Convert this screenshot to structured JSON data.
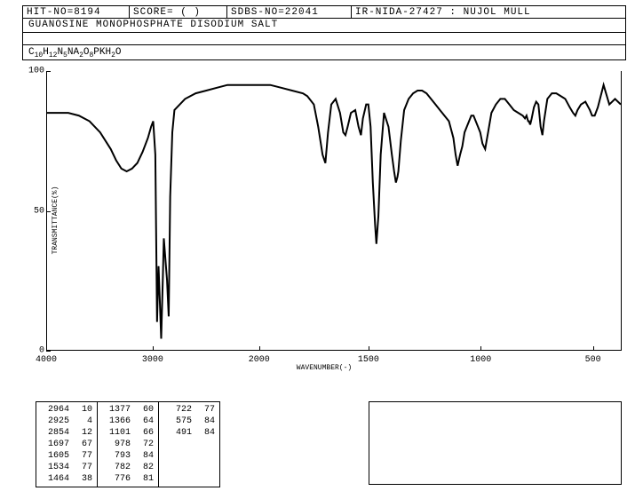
{
  "header": {
    "hit_no": "HIT-NO=8194",
    "score": "SCORE=  (  )",
    "sdbs_no": "SDBS-NO=22041",
    "ir_id": "IR-NIDA-27427 : NUJOL MULL",
    "compound": "GUANOSINE MONOPHOSPHATE DISODIUM SALT",
    "formula_plain": "C10H12N5NA2O8PKH2O"
  },
  "chart": {
    "type": "line",
    "xlabel": "WAVENUMBER(-)",
    "ylabel": "TRANSMITTANCE(%)",
    "xlim": [
      4000,
      400
    ],
    "ylim": [
      0,
      100
    ],
    "xticks": [
      4000,
      3000,
      2000,
      1500,
      1000,
      500
    ],
    "yticks": [
      0,
      50,
      100
    ],
    "line_color": "#000000",
    "background": "#ffffff",
    "data": [
      [
        4000,
        85
      ],
      [
        3900,
        85
      ],
      [
        3800,
        85
      ],
      [
        3700,
        84
      ],
      [
        3600,
        82
      ],
      [
        3500,
        78
      ],
      [
        3400,
        72
      ],
      [
        3350,
        68
      ],
      [
        3300,
        65
      ],
      [
        3250,
        64
      ],
      [
        3200,
        65
      ],
      [
        3150,
        67
      ],
      [
        3100,
        71
      ],
      [
        3050,
        76
      ],
      [
        3020,
        80
      ],
      [
        3000,
        82
      ],
      [
        2980,
        70
      ],
      [
        2964,
        10
      ],
      [
        2950,
        30
      ],
      [
        2940,
        20
      ],
      [
        2925,
        4
      ],
      [
        2910,
        25
      ],
      [
        2900,
        40
      ],
      [
        2880,
        30
      ],
      [
        2870,
        25
      ],
      [
        2854,
        12
      ],
      [
        2840,
        55
      ],
      [
        2820,
        78
      ],
      [
        2800,
        86
      ],
      [
        2700,
        90
      ],
      [
        2600,
        92
      ],
      [
        2500,
        93
      ],
      [
        2400,
        94
      ],
      [
        2300,
        95
      ],
      [
        2200,
        95
      ],
      [
        2100,
        95
      ],
      [
        2000,
        95
      ],
      [
        1950,
        95
      ],
      [
        1900,
        94
      ],
      [
        1850,
        93
      ],
      [
        1800,
        92
      ],
      [
        1780,
        91
      ],
      [
        1750,
        88
      ],
      [
        1730,
        80
      ],
      [
        1710,
        70
      ],
      [
        1697,
        67
      ],
      [
        1685,
        78
      ],
      [
        1670,
        88
      ],
      [
        1650,
        90
      ],
      [
        1630,
        85
      ],
      [
        1615,
        78
      ],
      [
        1605,
        77
      ],
      [
        1595,
        80
      ],
      [
        1580,
        85
      ],
      [
        1560,
        86
      ],
      [
        1545,
        80
      ],
      [
        1534,
        77
      ],
      [
        1525,
        83
      ],
      [
        1510,
        88
      ],
      [
        1500,
        88
      ],
      [
        1490,
        80
      ],
      [
        1480,
        60
      ],
      [
        1470,
        45
      ],
      [
        1464,
        38
      ],
      [
        1455,
        48
      ],
      [
        1445,
        70
      ],
      [
        1430,
        85
      ],
      [
        1410,
        80
      ],
      [
        1395,
        70
      ],
      [
        1385,
        64
      ],
      [
        1377,
        60
      ],
      [
        1370,
        62
      ],
      [
        1366,
        64
      ],
      [
        1355,
        75
      ],
      [
        1340,
        86
      ],
      [
        1320,
        90
      ],
      [
        1300,
        92
      ],
      [
        1280,
        93
      ],
      [
        1260,
        93
      ],
      [
        1240,
        92
      ],
      [
        1220,
        90
      ],
      [
        1200,
        88
      ],
      [
        1180,
        86
      ],
      [
        1160,
        84
      ],
      [
        1140,
        82
      ],
      [
        1120,
        76
      ],
      [
        1110,
        70
      ],
      [
        1101,
        66
      ],
      [
        1090,
        70
      ],
      [
        1080,
        73
      ],
      [
        1070,
        78
      ],
      [
        1060,
        80
      ],
      [
        1050,
        82
      ],
      [
        1040,
        84
      ],
      [
        1030,
        84
      ],
      [
        1020,
        82
      ],
      [
        1010,
        80
      ],
      [
        1000,
        78
      ],
      [
        990,
        74
      ],
      [
        978,
        72
      ],
      [
        965,
        78
      ],
      [
        950,
        85
      ],
      [
        930,
        88
      ],
      [
        910,
        90
      ],
      [
        890,
        90
      ],
      [
        870,
        88
      ],
      [
        850,
        86
      ],
      [
        830,
        85
      ],
      [
        810,
        84
      ],
      [
        800,
        83
      ],
      [
        793,
        84
      ],
      [
        786,
        82
      ],
      [
        782,
        82
      ],
      [
        778,
        81
      ],
      [
        776,
        81
      ],
      [
        770,
        83
      ],
      [
        760,
        87
      ],
      [
        750,
        89
      ],
      [
        740,
        88
      ],
      [
        730,
        80
      ],
      [
        722,
        77
      ],
      [
        715,
        82
      ],
      [
        700,
        90
      ],
      [
        680,
        92
      ],
      [
        660,
        92
      ],
      [
        640,
        91
      ],
      [
        620,
        90
      ],
      [
        600,
        87
      ],
      [
        585,
        85
      ],
      [
        575,
        84
      ],
      [
        565,
        86
      ],
      [
        550,
        88
      ],
      [
        530,
        89
      ],
      [
        510,
        86
      ],
      [
        500,
        84
      ],
      [
        491,
        84
      ],
      [
        480,
        87
      ],
      [
        460,
        95
      ],
      [
        440,
        88
      ],
      [
        420,
        90
      ],
      [
        400,
        88
      ]
    ]
  },
  "peaks": {
    "columns": [
      [
        [
          2964,
          10
        ],
        [
          2925,
          4
        ],
        [
          2854,
          12
        ],
        [
          1697,
          67
        ],
        [
          1605,
          77
        ],
        [
          1534,
          77
        ],
        [
          1464,
          38
        ]
      ],
      [
        [
          1377,
          60
        ],
        [
          1366,
          64
        ],
        [
          1101,
          66
        ],
        [
          978,
          72
        ],
        [
          793,
          84
        ],
        [
          782,
          82
        ],
        [
          776,
          81
        ]
      ],
      [
        [
          722,
          77
        ],
        [
          575,
          84
        ],
        [
          491,
          84
        ]
      ]
    ]
  }
}
